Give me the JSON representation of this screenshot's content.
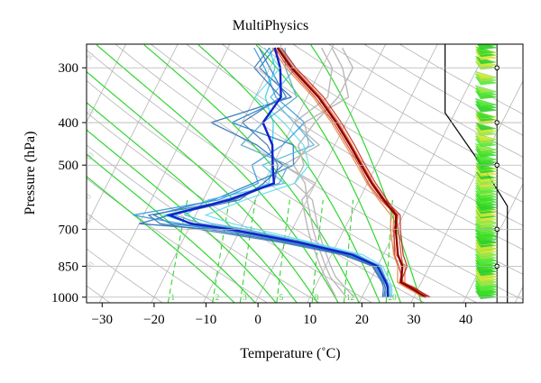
{
  "chart_data": {
    "type": "line",
    "title": "MultiPhysics",
    "xlabel": "Temperature (˚C)",
    "ylabel": "Pressure (hPa)",
    "xlim": [
      -33,
      51
    ],
    "ylim": [
      1030,
      265
    ],
    "y_scale": "log",
    "x_ticks": [
      "−30",
      "−20",
      "−10",
      "0",
      "10",
      "20",
      "30",
      "40"
    ],
    "y_ticks": [
      "300",
      "400",
      "500",
      "700",
      "850",
      "1000"
    ],
    "x_tick_values": [
      -30,
      -20,
      -10,
      0,
      10,
      20,
      30,
      40
    ],
    "y_tick_values": [
      300,
      400,
      500,
      700,
      850,
      1000
    ],
    "skew_factor": 18.5,
    "colors": {
      "isotherm": "#b4b4b4",
      "dry_adiabat": "#b4b4b4",
      "moist_adiabat": "#2fd62f",
      "mixing_ratio": "#2fd62f",
      "temperature_mean": "#8b0000",
      "dewpoint_mean": "#1020cc",
      "wind_barb": "#33dd22"
    },
    "isotherm_values": [
      -100,
      -90,
      -80,
      -70,
      -60,
      -50,
      -40,
      -30,
      -20,
      -10,
      0,
      10,
      20,
      30,
      40,
      50
    ],
    "dry_adiabat_theta_c": [
      -30,
      -20,
      -10,
      0,
      10,
      20,
      30,
      40,
      50,
      60,
      70,
      80,
      90,
      100,
      110,
      120,
      130
    ],
    "moist_adiabat_start_c": [
      -4,
      0,
      4,
      8,
      12,
      16,
      20,
      24,
      28,
      32
    ],
    "mixing_ratio_values": [
      "1",
      "2",
      "3",
      "5",
      "8",
      "12",
      "20"
    ],
    "faint_isotherm_labels": [
      "30",
      "20",
      "10",
      "0",
      "10",
      "20",
      "30"
    ],
    "series": [
      {
        "role": "temperature",
        "ensemble": [
          {
            "p": [
              1000,
              950,
              925,
              850,
              800,
              700,
              650,
              600,
              550,
              500,
              450,
              400,
              350,
              300,
              270
            ],
            "t": [
              32.5,
              28.5,
              26.2,
              24.6,
              22.8,
              20.0,
              19.0,
              14.6,
              10.8,
              7.0,
              2.9,
              -1.9,
              -7.8,
              -15.9,
              -20.6
            ]
          },
          {
            "p": [
              1000,
              950,
              925,
              850,
              800,
              700,
              650,
              600,
              550,
              500,
              450,
              400,
              350,
              300,
              270
            ],
            "t": [
              32.2,
              27.8,
              25.8,
              24.9,
              23.4,
              20.4,
              18.6,
              14.2,
              10.2,
              6.6,
              2.4,
              -2.4,
              -8.4,
              -16.4,
              -21.0
            ]
          },
          {
            "p": [
              1000,
              950,
              925,
              850,
              800,
              700,
              650,
              600,
              550,
              500,
              450,
              400,
              350,
              300,
              270
            ],
            "t": [
              31.5,
              28.2,
              26.8,
              25.3,
              22.4,
              19.4,
              18.2,
              14.9,
              11.2,
              7.4,
              3.3,
              -1.4,
              -7.3,
              -15.4,
              -20.2
            ]
          },
          {
            "p": [
              1000,
              950,
              925,
              850,
              800,
              700,
              650,
              600,
              550,
              500,
              450,
              400,
              350,
              300,
              270
            ],
            "t": [
              32.9,
              29.1,
              26.5,
              24.1,
              22.1,
              19.6,
              18.8,
              15.4,
              11.6,
              7.8,
              3.8,
              -0.9,
              -6.8,
              -15.0,
              -19.7
            ]
          },
          {
            "p": [
              1000,
              950,
              925,
              850,
              800,
              700,
              650,
              600,
              550,
              500,
              450,
              400,
              350,
              300,
              270
            ],
            "t": [
              31.9,
              27.5,
              25.4,
              23.9,
              22.0,
              18.9,
              17.6,
              13.8,
              9.9,
              6.2,
              2.0,
              -2.8,
              -8.8,
              -16.9,
              -21.5
            ]
          },
          {
            "p": [
              1000,
              950,
              925,
              850,
              800,
              700,
              650,
              600,
              550,
              500,
              450,
              400,
              350,
              300,
              270
            ],
            "t": [
              33.2,
              28.8,
              26.0,
              25.7,
              23.8,
              20.8,
              19.4,
              15.0,
              11.0,
              7.2,
              3.1,
              -1.7,
              -7.6,
              -15.6,
              -20.3
            ]
          }
        ],
        "mean": {
          "p": [
            1000,
            950,
            925,
            850,
            800,
            700,
            650,
            600,
            550,
            500,
            450,
            400,
            350,
            300,
            270
          ],
          "t": [
            32.3,
            28.3,
            26.1,
            24.8,
            22.8,
            19.9,
            18.6,
            14.7,
            10.8,
            7.0,
            2.9,
            -1.9,
            -7.8,
            -15.9,
            -20.5
          ]
        }
      },
      {
        "role": "dewpoint",
        "ensemble": [
          {
            "p": [
              1000,
              950,
              925,
              850,
              800,
              750,
              700,
              680,
              650,
              600,
              550,
              500,
              450,
              400,
              350,
              300,
              270
            ],
            "t": [
              25.0,
              24.0,
              23.2,
              20.0,
              14.0,
              3.0,
              -12.0,
              -20.0,
              -26.0,
              -15.0,
              -9.0,
              -10.0,
              -12.0,
              -14.0,
              -18.0,
              -19.0,
              -22.0
            ]
          },
          {
            "p": [
              1000,
              950,
              925,
              850,
              800,
              750,
              700,
              680,
              650,
              600,
              550,
              500,
              450,
              400,
              350,
              300,
              270
            ],
            "t": [
              24.5,
              23.5,
              22.8,
              19.5,
              13.0,
              1.0,
              -14.0,
              -24.0,
              -28.0,
              -18.0,
              -12.0,
              -6.0,
              -8.0,
              -22.0,
              -14.0,
              -20.0,
              -24.0
            ]
          },
          {
            "p": [
              1000,
              950,
              925,
              850,
              800,
              750,
              700,
              680,
              650,
              600,
              550,
              500,
              450,
              400,
              350,
              300,
              270
            ],
            "t": [
              25.5,
              24.5,
              23.5,
              20.4,
              15.0,
              4.0,
              -9.0,
              -16.0,
              -22.0,
              -19.0,
              -6.0,
              -12.0,
              -4.0,
              -10.0,
              -17.0,
              -15.0,
              -20.0
            ]
          },
          {
            "p": [
              1000,
              950,
              925,
              850,
              800,
              750,
              700,
              680,
              650,
              600,
              550,
              500,
              450,
              400,
              350,
              300,
              270
            ],
            "t": [
              24.0,
              23.2,
              22.4,
              19.0,
              12.5,
              0.0,
              -16.0,
              -30.0,
              -25.0,
              -13.0,
              -10.0,
              -8.0,
              -15.0,
              -26.0,
              -13.0,
              -22.0,
              -21.0
            ]
          },
          {
            "p": [
              1000,
              950,
              925,
              850,
              800,
              750,
              700,
              680,
              650,
              600,
              550,
              500,
              450,
              400,
              350,
              300,
              270
            ],
            "t": [
              25.8,
              24.8,
              24.0,
              21.0,
              16.0,
              5.0,
              -7.0,
              -12.0,
              -18.0,
              -12.0,
              -4.0,
              -3.0,
              -6.0,
              -12.0,
              -20.0,
              -18.0,
              -23.0
            ]
          },
          {
            "p": [
              1000,
              950,
              925,
              850,
              800,
              750,
              700,
              680,
              650,
              600,
              550,
              500,
              450,
              400,
              350,
              300,
              270
            ],
            "t": [
              24.8,
              24.0,
              23.0,
              19.8,
              13.5,
              2.0,
              -13.0,
              -22.0,
              -32.0,
              -17.0,
              -11.0,
              -14.0,
              -10.0,
              -8.0,
              -16.0,
              -21.0,
              -25.0
            ]
          },
          {
            "p": [
              1000,
              950,
              925,
              850,
              800,
              750,
              700,
              680,
              650,
              600,
              550,
              500,
              450,
              400,
              350,
              300,
              270
            ],
            "t": [
              25.2,
              24.2,
              23.4,
              20.6,
              14.5,
              3.5,
              -10.0,
              -18.0,
              -24.0,
              -16.0,
              -7.0,
              -7.0,
              -18.0,
              -16.0,
              -12.0,
              -17.0,
              -19.0
            ]
          },
          {
            "p": [
              1000,
              950,
              925,
              850,
              800,
              750,
              700,
              680,
              650,
              600,
              550,
              500,
              450,
              400,
              350,
              300,
              270
            ],
            "t": [
              24.2,
              23.6,
              22.6,
              19.2,
              12.0,
              -1.0,
              -18.0,
              -26.0,
              -29.0,
              -14.0,
              -8.0,
              -9.0,
              -13.0,
              -20.0,
              -15.0,
              -23.0,
              -22.0
            ]
          }
        ],
        "mean": {
          "p": [
            1000,
            950,
            925,
            850,
            800,
            750,
            700,
            680,
            650,
            600,
            550,
            500,
            450,
            400,
            350,
            300,
            270
          ],
          "t": [
            25.0,
            24.0,
            23.2,
            20.0,
            14.0,
            2.5,
            -12.0,
            -20.0,
            -25.0,
            -15.0,
            -8.0,
            -10.0,
            -12.0,
            -16.0,
            -15.0,
            -18.0,
            -21.0
          ]
        }
      }
    ],
    "grey_profiles": [
      {
        "p": [
          1000,
          900,
          850,
          750,
          700,
          600,
          550,
          500,
          450,
          400,
          350,
          300,
          270
        ],
        "t": [
          17.0,
          12.0,
          10.0,
          6.0,
          4.0,
          0.0,
          -2.0,
          -6.0,
          -5.0,
          -8.0,
          -2.0,
          -6.0,
          -10.0
        ]
      },
      {
        "p": [
          1000,
          900,
          850,
          750,
          700,
          600,
          550,
          500,
          450,
          400,
          350,
          300,
          270
        ],
        "t": [
          15.0,
          11.0,
          9.0,
          5.0,
          3.0,
          -1.0,
          0.0,
          -8.0,
          -3.0,
          -10.0,
          -6.0,
          -8.0,
          -12.0
        ]
      },
      {
        "p": [
          1000,
          900,
          850,
          750,
          700,
          600,
          550,
          500,
          450,
          400,
          350,
          300,
          270
        ],
        "t": [
          18.5,
          13.0,
          11.0,
          7.0,
          5.0,
          1.0,
          -4.0,
          -4.0,
          -7.0,
          -6.0,
          -4.0,
          -4.0,
          -8.0
        ]
      }
    ],
    "wind_barbs": {
      "temperature_c": 46,
      "pressures": [
        1000,
        975,
        950,
        925,
        900,
        875,
        850,
        825,
        800,
        775,
        750,
        725,
        700,
        675,
        650,
        625,
        600,
        575,
        550,
        525,
        500,
        475,
        450,
        425,
        400,
        375,
        350,
        325,
        300,
        285,
        270
      ],
      "circle_pressures": [
        300,
        400,
        500,
        700,
        850
      ],
      "colors": [
        "#2fcf2f",
        "#3ddd22",
        "#55e83a",
        "#99e64a",
        "#d6e636"
      ]
    },
    "tropopause_line": {
      "p": [
        265,
        380,
        520,
        620,
        1030
      ],
      "t": [
        36,
        36,
        44,
        48,
        48
      ]
    }
  }
}
